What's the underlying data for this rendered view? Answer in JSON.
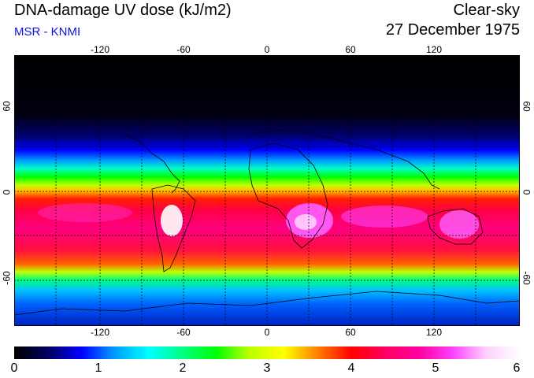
{
  "header": {
    "title": "DNA-damage UV dose (kJ/m2)",
    "subtitle": "MSR - KNMI",
    "sky": "Clear-sky",
    "date": "27 December 1975"
  },
  "map": {
    "lon_ticks": [
      "-120",
      "-60",
      "0",
      "60",
      "120"
    ],
    "lat_ticks_left": [
      "60",
      "0",
      "-60"
    ],
    "lat_ticks_right": [
      "60",
      "0",
      "-60"
    ]
  },
  "colorbar": {
    "labels": [
      "0",
      "1",
      "2",
      "3",
      "4",
      "5",
      "6"
    ],
    "colors": [
      "#000000",
      "#000060",
      "#0000ff",
      "#00a0ff",
      "#00ffff",
      "#00ff80",
      "#00ff00",
      "#c0ff00",
      "#ffff00",
      "#ff8000",
      "#ff0000",
      "#ff0060",
      "#ff00a0",
      "#ff40ff",
      "#ffd0ff",
      "#ffffff"
    ]
  }
}
